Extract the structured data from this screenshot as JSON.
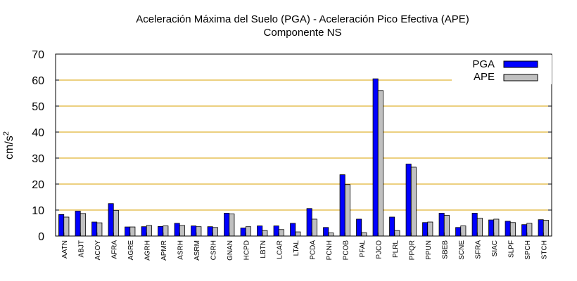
{
  "chart_data": {
    "type": "bar",
    "title_line1": "Aceleración Máxima del Suelo (PGA) -  Aceleración Pico Efectiva (APE)",
    "title_line2": "Componente NS",
    "ylabel_base": "cm/s",
    "ylabel_exp": "2",
    "xlabel": "",
    "ylim": [
      0,
      70
    ],
    "yticks": [
      0,
      10,
      20,
      30,
      40,
      50,
      60,
      70
    ],
    "grid": true,
    "legend_position": "top-right",
    "categories": [
      "AATN",
      "ABJT",
      "ACOY",
      "AFRA",
      "AGRE",
      "AGRH",
      "APMR",
      "ASRH",
      "ASRM",
      "CSRH",
      "GNAN",
      "HCPD",
      "LBTN",
      "LCAR",
      "LTAL",
      "PCDA",
      "PCNH",
      "PCOB",
      "PFAL",
      "PJCO",
      "PLRL",
      "PPQR",
      "PPUN",
      "SBEB",
      "SCNE",
      "SFRA",
      "SIAC",
      "SLPF",
      "SPCH",
      "STCH"
    ],
    "series": [
      {
        "name": "PGA",
        "color": "#0000ff",
        "values": [
          8.3,
          9.6,
          5.4,
          12.5,
          3.5,
          3.6,
          3.7,
          4.9,
          3.9,
          3.6,
          8.8,
          3.1,
          3.9,
          3.9,
          4.9,
          10.6,
          3.3,
          23.6,
          6.5,
          60.5,
          7.3,
          27.7,
          5.2,
          8.8,
          3.3,
          8.8,
          6.2,
          5.7,
          4.4,
          6.3
        ]
      },
      {
        "name": "APE",
        "color": "#c0c0c0",
        "values": [
          7.3,
          8.7,
          5.1,
          9.9,
          3.5,
          4.1,
          3.9,
          4.1,
          3.6,
          3.3,
          8.5,
          3.6,
          2.1,
          2.5,
          1.6,
          6.5,
          1.2,
          19.8,
          1.3,
          56.0,
          2.1,
          26.5,
          5.4,
          8.0,
          3.9,
          6.9,
          6.5,
          5.2,
          4.9,
          6.1
        ]
      }
    ],
    "gridline_color": "#d9a000",
    "axis_color": "#000000"
  }
}
